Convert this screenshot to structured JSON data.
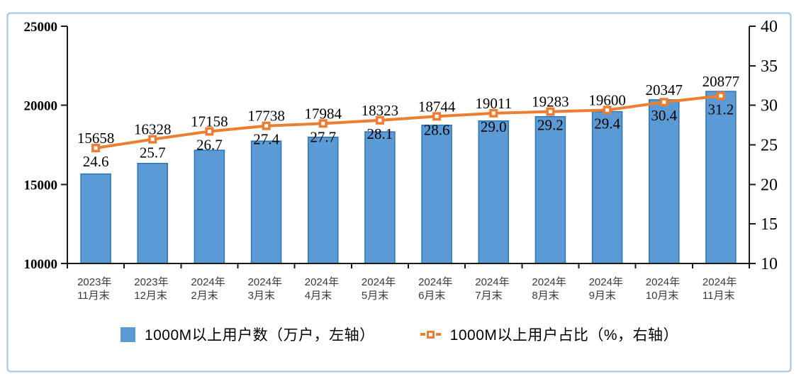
{
  "chart_data": {
    "type": "bar+line",
    "categories": [
      [
        "2023年",
        "11月末"
      ],
      [
        "2023年",
        "12月末"
      ],
      [
        "2024年",
        "2月末"
      ],
      [
        "2024年",
        "3月末"
      ],
      [
        "2024年",
        "4月末"
      ],
      [
        "2024年",
        "5月末"
      ],
      [
        "2024年",
        "6月末"
      ],
      [
        "2024年",
        "7月末"
      ],
      [
        "2024年",
        "8月末"
      ],
      [
        "2024年",
        "9月末"
      ],
      [
        "2024年",
        "10月末"
      ],
      [
        "2024年",
        "11月末"
      ]
    ],
    "series": [
      {
        "name": "1000M以上用户数（万户，左轴）",
        "type": "bar",
        "axis": "left",
        "values": [
          15658,
          16328,
          17158,
          17738,
          17984,
          18323,
          18744,
          19011,
          19283,
          19600,
          20347,
          20877
        ]
      },
      {
        "name": "1000M以上用户占比（%，右轴）",
        "type": "line",
        "axis": "right",
        "values": [
          24.6,
          25.7,
          26.7,
          27.4,
          27.7,
          28.1,
          28.6,
          29.0,
          29.2,
          29.4,
          30.4,
          31.2
        ]
      }
    ],
    "left_axis": {
      "min": 10000,
      "max": 25000,
      "step": 5000,
      "tick_labels": [
        "25000",
        "20000",
        "15000",
        "10000"
      ]
    },
    "right_axis": {
      "min": 10,
      "max": 40,
      "step": 5,
      "tick_labels": [
        "40",
        "35",
        "30",
        "25",
        "20",
        "15",
        "10"
      ]
    },
    "grid": "off",
    "legend_position": "bottom",
    "colors": {
      "bar_fill": "#5B9BD5",
      "bar_border": "#2E75B6",
      "line": "#ED7D31",
      "frame_border": "#9DC3E6",
      "axis": "#1a1a1a",
      "category_text": "#3a3a3a",
      "label_text": "#000000"
    }
  }
}
